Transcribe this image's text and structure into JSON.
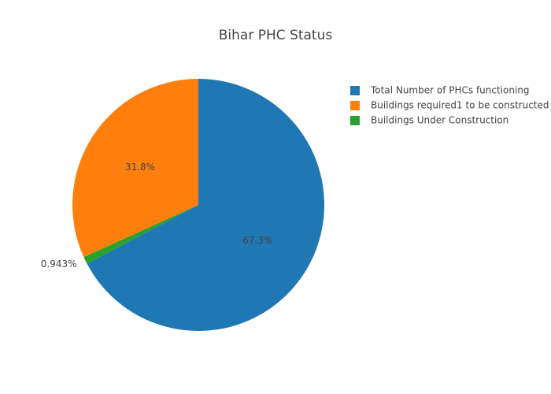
{
  "chart_data": {
    "type": "pie",
    "title": "Bihar PHC Status",
    "categories": [
      "Total Number of PHCs functioning",
      "Buildings required1 to be constructed",
      "Buildings Under Construction"
    ],
    "values": [
      67.3,
      31.8,
      0.943
    ],
    "value_labels": [
      "67.3%",
      "31.8%",
      "0.943%"
    ],
    "colors": [
      "#1f77b4",
      "#ff7f0e",
      "#2ca02c"
    ]
  }
}
